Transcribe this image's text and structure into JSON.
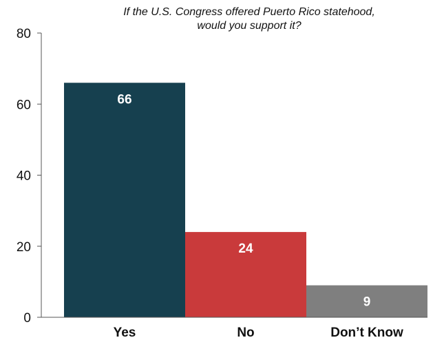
{
  "chart_data": {
    "type": "bar",
    "title_lines": [
      "If the U.S. Congress offered Puerto Rico statehood,",
      "would you support it?"
    ],
    "categories": [
      "Yes",
      "No",
      "Don’t Know"
    ],
    "values": [
      66,
      24,
      9
    ],
    "data_labels": [
      "66",
      "24",
      "9"
    ],
    "bar_colors": [
      "#16404f",
      "#c93a3b",
      "#7f7f7f"
    ],
    "ylim": [
      0,
      80
    ],
    "yticks": [
      0,
      20,
      40,
      60,
      80
    ],
    "ytick_labels": [
      "0",
      "20",
      "40",
      "60",
      "80"
    ],
    "grid": false,
    "legend": "none"
  }
}
